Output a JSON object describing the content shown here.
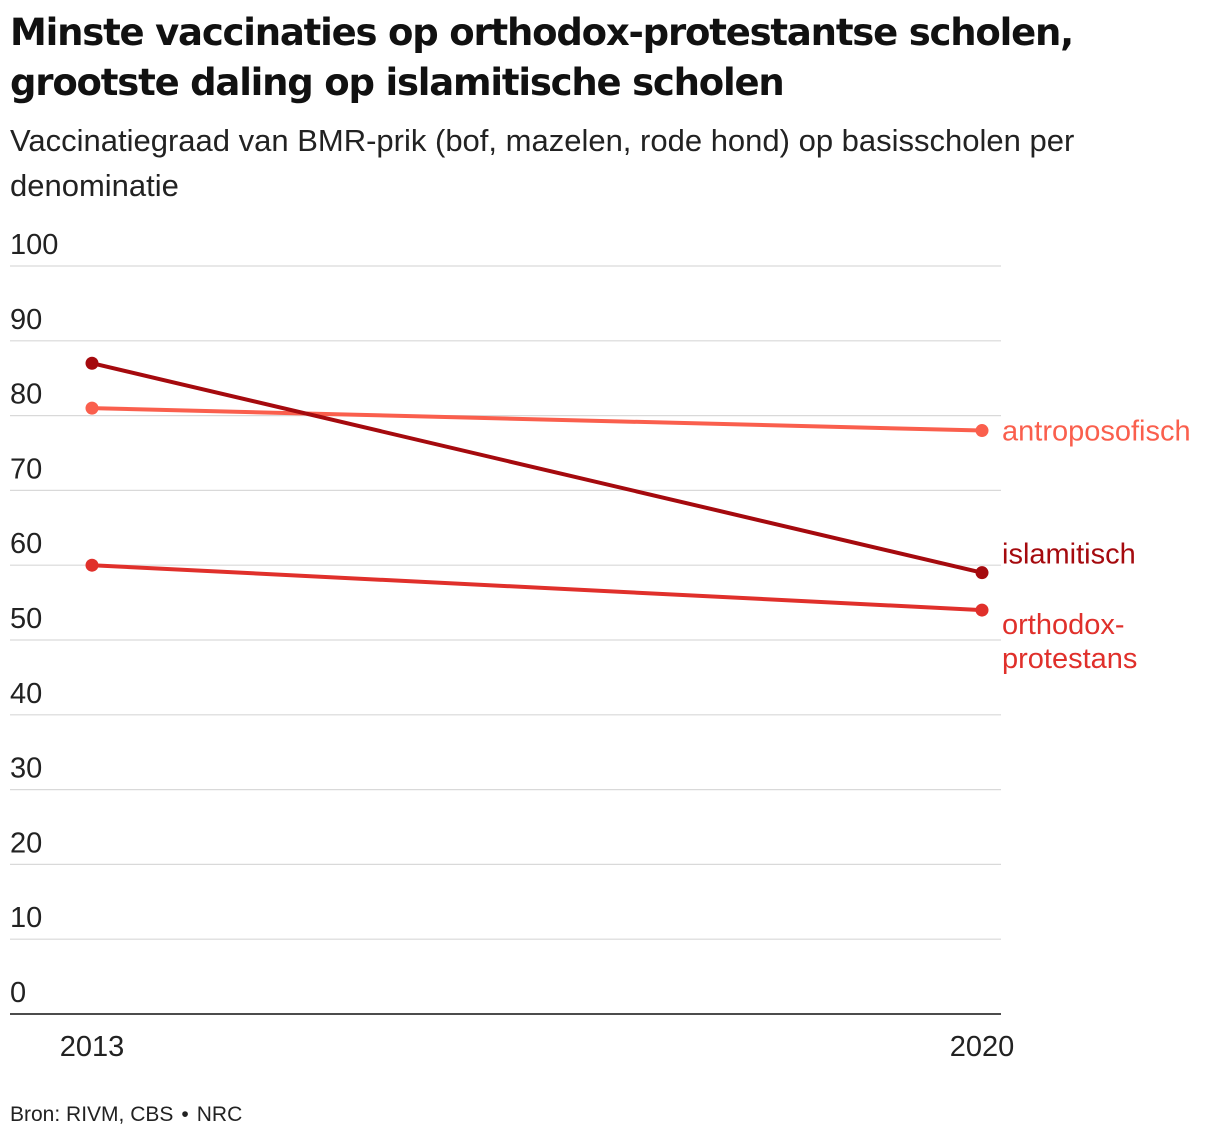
{
  "title": "Minste vaccinaties op orthodox-protestantse scholen, grootste daling op islamitische scholen",
  "subtitle": "Vaccinatiegraad van BMR-prik (bof, mazelen, rode hond) op basisscholen per denominatie",
  "source": {
    "text": "Bron: RIVM, CBS",
    "separator": "•",
    "publisher": "NRC"
  },
  "chart_data": {
    "type": "line",
    "x": [
      "2013",
      "2020"
    ],
    "ylim": [
      0,
      100
    ],
    "yticks": [
      "0",
      "10",
      "20",
      "30",
      "40",
      "50",
      "60",
      "70",
      "80",
      "90",
      "100"
    ],
    "grid": true,
    "legend": "direct labels at line ends (right)",
    "series": [
      {
        "name": "antroposofisch",
        "label_lines": [
          "antroposofisch"
        ],
        "values": [
          81,
          78
        ],
        "color": "#fa5f4d"
      },
      {
        "name": "islamitisch",
        "label_lines": [
          "islamitisch"
        ],
        "values": [
          87,
          59
        ],
        "color": "#a50a0e"
      },
      {
        "name": "orthodox-protestans",
        "label_lines": [
          "orthodox-",
          "protestans"
        ],
        "values": [
          60,
          54
        ],
        "color": "#e0302b"
      }
    ]
  }
}
